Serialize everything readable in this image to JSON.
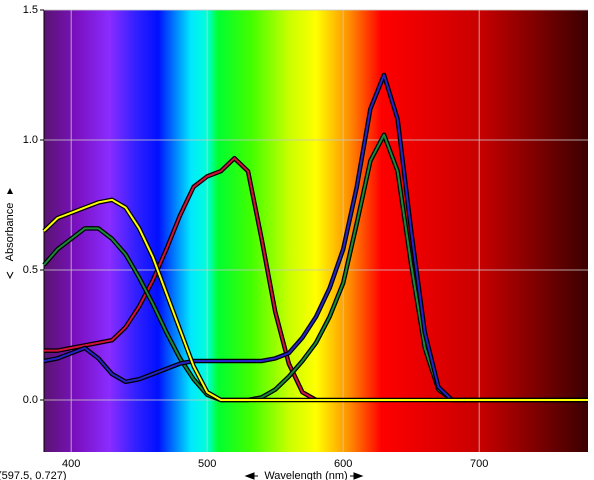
{
  "chart_data": {
    "type": "line",
    "x_label": "Wavelength (nm)",
    "y_label": "Absorbance",
    "annotation": "(597.5, 0.727)",
    "x": [
      380,
      390,
      400,
      410,
      420,
      430,
      440,
      450,
      460,
      470,
      480,
      490,
      500,
      510,
      520,
      530,
      540,
      550,
      560,
      570,
      580,
      590,
      600,
      610,
      620,
      630,
      640,
      650,
      660,
      670,
      680,
      690,
      700,
      710,
      720,
      730,
      740,
      750,
      760,
      770,
      780
    ],
    "series": [
      {
        "name": "red",
        "color": "#d4103c",
        "values": [
          0.19,
          0.19,
          0.2,
          0.21,
          0.22,
          0.23,
          0.28,
          0.36,
          0.46,
          0.58,
          0.71,
          0.82,
          0.86,
          0.88,
          0.93,
          0.88,
          0.62,
          0.34,
          0.14,
          0.03,
          0,
          null,
          null,
          null,
          null,
          null,
          null,
          null,
          null,
          null,
          null,
          null,
          null,
          null,
          null,
          null,
          null,
          null,
          null,
          null,
          null
        ]
      },
      {
        "name": "green",
        "color": "#1a8a3a",
        "values": [
          0.52,
          0.58,
          0.62,
          0.66,
          0.66,
          0.62,
          0.56,
          0.47,
          0.37,
          0.26,
          0.16,
          0.08,
          0.02,
          0,
          0,
          0,
          0.01,
          0.04,
          0.09,
          0.15,
          0.22,
          0.32,
          0.45,
          0.68,
          0.92,
          1.02,
          0.88,
          0.52,
          0.2,
          0.04,
          0,
          0,
          0,
          0,
          0,
          0,
          0,
          0,
          0,
          0,
          0
        ]
      },
      {
        "name": "blue",
        "color": "#2424c8",
        "values": [
          0.15,
          0.16,
          0.18,
          0.2,
          0.16,
          0.1,
          0.07,
          0.08,
          0.1,
          0.12,
          0.14,
          0.15,
          0.15,
          0.15,
          0.15,
          0.15,
          0.15,
          0.16,
          0.18,
          0.24,
          0.32,
          0.43,
          0.58,
          0.82,
          1.12,
          1.25,
          1.08,
          0.65,
          0.26,
          0.05,
          0,
          0,
          0,
          0,
          0,
          0,
          0,
          0,
          0,
          0,
          0
        ]
      },
      {
        "name": "yellow",
        "color": "#ffff00",
        "values": [
          0.65,
          0.7,
          0.72,
          0.74,
          0.76,
          0.77,
          0.74,
          0.66,
          0.55,
          0.41,
          0.27,
          0.13,
          0.03,
          0,
          0,
          0,
          0,
          0,
          0,
          0,
          0,
          0,
          0,
          0,
          0,
          0,
          0,
          0,
          0,
          0,
          0,
          0,
          0,
          0,
          0,
          0,
          0,
          0,
          0,
          0,
          0
        ]
      }
    ],
    "xlim": [
      380,
      780
    ],
    "xticks": [
      400,
      500,
      600,
      700
    ],
    "ylim": [
      -0.2,
      1.5
    ],
    "yticks": [
      {
        "value": 0,
        "label": "0.0"
      },
      {
        "value": 0.5,
        "label": "0.5"
      },
      {
        "value": 1,
        "label": "1.0"
      },
      {
        "value": 1.5,
        "label": "1.5"
      }
    ],
    "grid": true
  }
}
